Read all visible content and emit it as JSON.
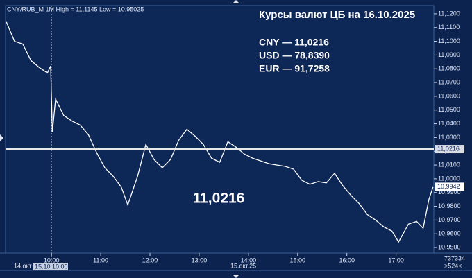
{
  "chart_data": {
    "type": "line",
    "header": "CNY/RUB_M 1M High = 11,1145 Low = 10,95025",
    "title": "Курсы валют ЦБ на 16.10.2025",
    "rates": [
      "CNY — 11,0216",
      "USD — 78,8390",
      "EUR — 91,7258"
    ],
    "center_label": "11,0216",
    "reference_value": 11.0216,
    "reference_label": "11,0216",
    "last_value": 10.9942,
    "last_label": "10,9942",
    "footer_labels": [
      "14.окт",
      "15.10 10:00",
      "15.окт.25"
    ],
    "corner_labels": [
      "737334",
      ">524<"
    ],
    "color": "#ffffff",
    "x": [
      545,
      555,
      565,
      575,
      585,
      595,
      599,
      601,
      605,
      615,
      625,
      635,
      645,
      655,
      665,
      675,
      685,
      693,
      705,
      715,
      725,
      735,
      745,
      755,
      765,
      775,
      785,
      795,
      805,
      815,
      825,
      835,
      845,
      855,
      865,
      875,
      885,
      895,
      905,
      915,
      925,
      935,
      945,
      955,
      965,
      975,
      985,
      995,
      1005,
      1015,
      1023,
      1035,
      1045,
      1053,
      1060,
      1065
    ],
    "values": [
      11.114,
      11.1,
      11.098,
      11.086,
      11.081,
      11.077,
      11.082,
      11.034,
      11.058,
      11.046,
      11.042,
      11.039,
      11.032,
      11.019,
      11.008,
      11.002,
      10.994,
      10.981,
      11.002,
      11.025,
      11.014,
      11.008,
      11.014,
      11.028,
      11.036,
      11.031,
      11.025,
      11.015,
      11.012,
      11.027,
      11.023,
      11.018,
      11.015,
      11.013,
      11.011,
      11.01,
      11.009,
      11.007,
      10.999,
      10.996,
      10.998,
      10.997,
      11.004,
      10.995,
      10.988,
      10.982,
      10.974,
      10.97,
      10.965,
      10.962,
      10.954,
      10.967,
      10.969,
      10.964,
      10.985,
      10.994
    ],
    "xlim": [
      544,
      1066
    ],
    "xticks": [
      {
        "value": 600,
        "label": "10:00"
      },
      {
        "value": 660,
        "label": "11:00"
      },
      {
        "value": 720,
        "label": "12:00"
      },
      {
        "value": 780,
        "label": "13:00"
      },
      {
        "value": 840,
        "label": "14:00"
      },
      {
        "value": 900,
        "label": "15:00"
      },
      {
        "value": 960,
        "label": "16:00"
      },
      {
        "value": 1020,
        "label": "17:00"
      }
    ],
    "ylim": [
      10.946,
      11.126
    ],
    "yticks": [
      {
        "value": 10.95,
        "label": "10,9500"
      },
      {
        "value": 10.96,
        "label": "10,9600"
      },
      {
        "value": 10.97,
        "label": "10,9700"
      },
      {
        "value": 10.98,
        "label": "10,9800"
      },
      {
        "value": 10.99,
        "label": "10,9900"
      },
      {
        "value": 11.0,
        "label": "11,0000"
      },
      {
        "value": 11.01,
        "label": "11,0100"
      },
      {
        "value": 11.02,
        "label": "11,0200"
      },
      {
        "value": 11.03,
        "label": "11,0300"
      },
      {
        "value": 11.04,
        "label": "11,0400"
      },
      {
        "value": 11.05,
        "label": "11,0500"
      },
      {
        "value": 11.06,
        "label": "11,0600"
      },
      {
        "value": 11.07,
        "label": "11,0700"
      },
      {
        "value": 11.08,
        "label": "11,0800"
      },
      {
        "value": 11.09,
        "label": "11,0900"
      },
      {
        "value": 11.1,
        "label": "11,1000"
      },
      {
        "value": 11.11,
        "label": "11,1100"
      },
      {
        "value": 11.12,
        "label": "11,1200"
      }
    ]
  }
}
